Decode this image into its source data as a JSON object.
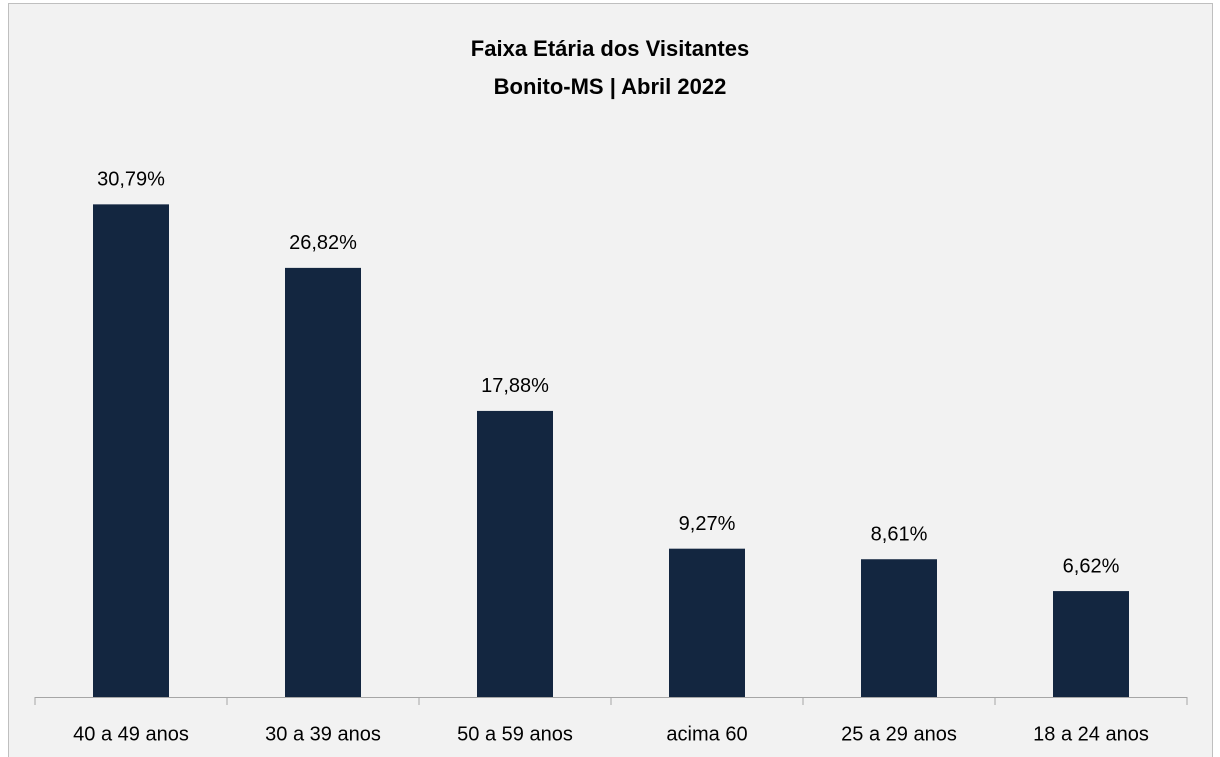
{
  "chart_data": {
    "type": "bar",
    "title": "Faixa Etária dos Visitantes",
    "subtitle": "Bonito-MS | Abril 2022",
    "categories": [
      "40 a 49 anos",
      "30 a 39 anos",
      "50 a 59 anos",
      "acima 60",
      "25 a 29 anos",
      "18 a 24 anos"
    ],
    "values": [
      30.79,
      26.82,
      17.88,
      9.27,
      8.61,
      6.62
    ],
    "value_labels": [
      "30,79%",
      "26,82%",
      "17,88%",
      "9,27%",
      "8,61%",
      "6,62%"
    ],
    "color": "#132640",
    "ylim": [
      0,
      35
    ],
    "grid": false
  }
}
